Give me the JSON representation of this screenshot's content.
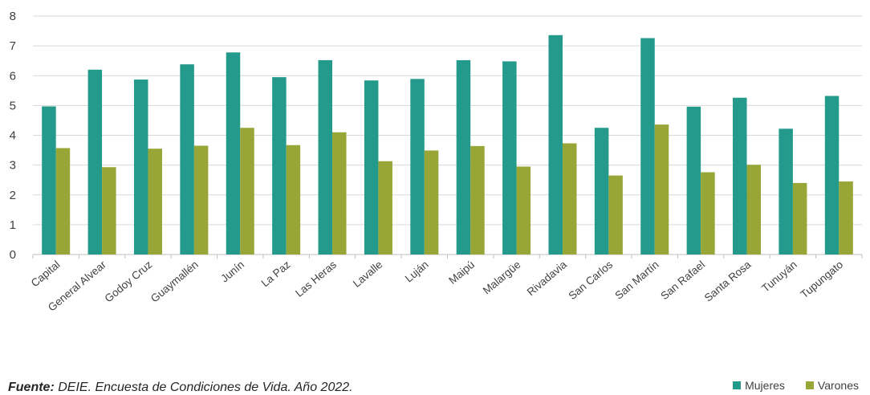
{
  "chart_data": {
    "type": "bar",
    "categories": [
      "Capital",
      "General Alvear",
      "Godoy Cruz",
      "Guaymallén",
      "Junín",
      "La Paz",
      "Las Heras",
      "Lavalle",
      "Luján",
      "Maipú",
      "Malargüe",
      "Rivadavia",
      "San Carlos",
      "San Martín",
      "San Rafael",
      "Santa Rosa",
      "Tunuyán",
      "Tupungato"
    ],
    "series": [
      {
        "name": "Mujeres",
        "color": "#239A8B",
        "values": [
          4.97,
          6.2,
          5.87,
          6.38,
          6.78,
          5.95,
          6.52,
          5.84,
          5.89,
          6.52,
          6.48,
          7.36,
          4.25,
          7.26,
          4.96,
          5.26,
          4.22,
          5.32
        ]
      },
      {
        "name": "Varones",
        "color": "#97A637",
        "values": [
          3.57,
          2.93,
          3.55,
          3.65,
          4.25,
          3.67,
          4.1,
          3.13,
          3.49,
          3.64,
          2.95,
          3.73,
          2.65,
          4.36,
          2.76,
          3.01,
          2.4,
          2.45
        ]
      }
    ],
    "ylim": [
      0,
      8
    ],
    "yticks": [
      "0",
      "1",
      "2",
      "3",
      "4",
      "5",
      "6",
      "7",
      "8"
    ],
    "grid": true,
    "legend_position": "bottom-right",
    "title": "",
    "xlabel": "",
    "ylabel": ""
  },
  "source": {
    "label": "Fuente:",
    "text": " DEIE. Encuesta de Condiciones de Vida. Año 2022."
  }
}
